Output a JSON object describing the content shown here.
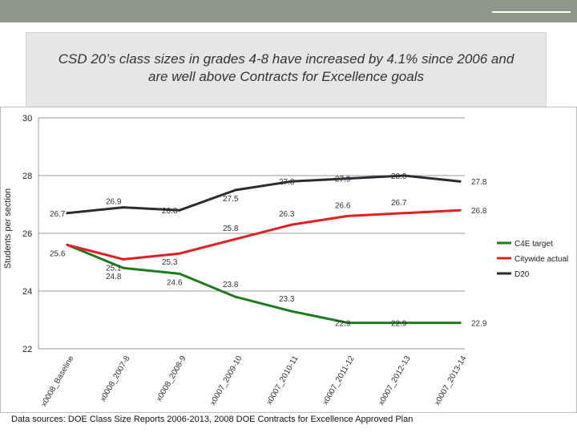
{
  "slide": {
    "title_line1": "CSD 20’s class sizes in grades 4-8 have increased by 4.1% since 2006 and",
    "title_line2": "are well above Contracts for Excellence goals",
    "footnote": "Data sources: DOE Class Size Reports 2006-2013, 2008 DOE Contracts for Excellence Approved Plan",
    "colors": {
      "topbar": "#8f968c",
      "title_bg": "#e6e6e6"
    }
  },
  "chart_data": {
    "type": "line",
    "title": "",
    "ylabel": "Students per section",
    "xlabel": "",
    "ylim": [
      22,
      30
    ],
    "yticks": [
      22,
      24,
      26,
      28,
      30
    ],
    "categories": [
      "x0008_Baseline",
      "x0008_2007-8",
      "x0008_2008-9",
      "x0007_2009-10",
      "x0007_2010-11",
      "x0007_2011-12",
      "x0007_2012-13",
      "x0007_2013-14"
    ],
    "series": [
      {
        "name": "C4E target",
        "color": "#1e7b1e",
        "values": [
          25.6,
          24.8,
          24.6,
          23.8,
          23.3,
          22.9,
          22.9,
          22.9
        ],
        "labels": [
          "25.6",
          "24.8",
          "24.6",
          "23.8",
          "23.3",
          "22.9",
          "22.9",
          "22.9"
        ]
      },
      {
        "name": "Citywide actual",
        "color": "#e02020",
        "values": [
          25.6,
          25.1,
          25.3,
          25.8,
          26.3,
          26.6,
          26.7,
          26.8
        ],
        "labels": [
          "",
          "25.1",
          "25.3",
          "25.8",
          "26.3",
          "26.6",
          "26.7",
          "26.8"
        ]
      },
      {
        "name": "D20",
        "color": "#2b2b33",
        "values": [
          26.7,
          26.9,
          26.8,
          27.5,
          27.8,
          27.9,
          28.0,
          27.8
        ],
        "labels": [
          "26.7",
          "26.9",
          "26.8",
          "27.5",
          "27.8",
          "27.9",
          "28.0",
          "27.8"
        ]
      }
    ],
    "legend": "right"
  }
}
